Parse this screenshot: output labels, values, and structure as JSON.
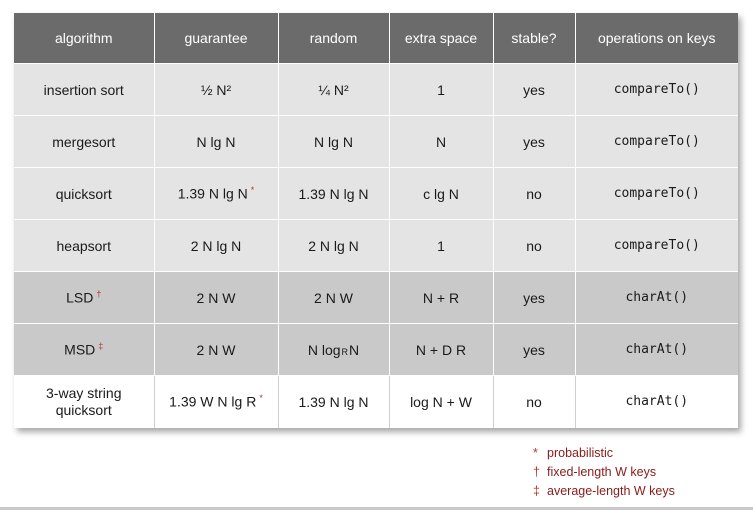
{
  "table": {
    "headers": [
      "algorithm",
      "guarantee",
      "random",
      "extra space",
      "stable?",
      "operations on keys"
    ],
    "rows": [
      {
        "algorithm": "insertion sort",
        "algorithm_mark": "",
        "guarantee": "½ N²",
        "guarantee_mark": "",
        "random": "¼ N²",
        "extra_space": "1",
        "stable": "yes",
        "operations": "compareTo()"
      },
      {
        "algorithm": "mergesort",
        "algorithm_mark": "",
        "guarantee": "N lg N",
        "guarantee_mark": "",
        "random": "N lg N",
        "extra_space": "N",
        "stable": "yes",
        "operations": "compareTo()"
      },
      {
        "algorithm": "quicksort",
        "algorithm_mark": "",
        "guarantee": "1.39 N lg N",
        "guarantee_mark": "*",
        "random": "1.39 N lg N",
        "extra_space": "c lg N",
        "stable": "no",
        "operations": "compareTo()"
      },
      {
        "algorithm": "heapsort",
        "algorithm_mark": "",
        "guarantee": "2 N lg N",
        "guarantee_mark": "",
        "random": "2 N lg N",
        "extra_space": "1",
        "stable": "no",
        "operations": "compareTo()"
      },
      {
        "algorithm": "LSD",
        "algorithm_mark": "†",
        "guarantee": "2 N W",
        "guarantee_mark": "",
        "random": "2 N W",
        "extra_space": "N + R",
        "stable": "yes",
        "operations": "charAt()"
      },
      {
        "algorithm": "MSD",
        "algorithm_mark": "‡",
        "guarantee": "2 N W",
        "guarantee_mark": "",
        "random_pre": "N log",
        "random_sub": "R",
        "random_post": "N",
        "extra_space": "N + D R",
        "stable": "yes",
        "operations": "charAt()"
      },
      {
        "algorithm_line1": "3-way string",
        "algorithm_line2": "quicksort",
        "algorithm_mark": "",
        "guarantee": "1.39 W N lg R",
        "guarantee_mark": "*",
        "random": "1.39 N lg N",
        "extra_space": "log N + W",
        "stable": "no",
        "operations": "charAt()"
      }
    ]
  },
  "legend": [
    {
      "symbol": "*",
      "text": "probabilistic"
    },
    {
      "symbol": "†",
      "text": "fixed-length W keys"
    },
    {
      "symbol": "‡",
      "text": "average-length W keys"
    }
  ],
  "colors": {
    "header_bg": "#6b6b6b",
    "row_light": "#e4e4e4",
    "row_mid": "#c9c9c9",
    "row_white": "#ffffff",
    "mark": "#b03a2e",
    "legend_text": "#8b1a1a"
  }
}
